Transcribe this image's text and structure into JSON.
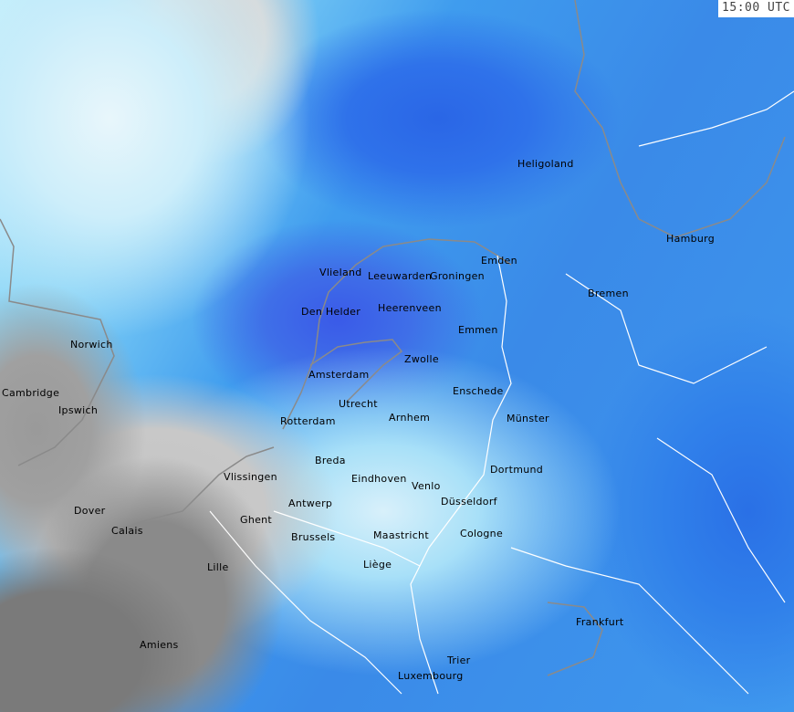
{
  "timestamp": "15:00 UTC",
  "colors": {
    "land_gray": "#7a7a7a",
    "sea_gray": "#c8c8c8",
    "light_precip": "#cdeefa",
    "moderate_precip": "#3f98ee",
    "heavy_precip": "#2a66e6",
    "intense_precip": "#e010e0",
    "extreme_precip": "#e00020",
    "borders": "#ffffff",
    "coastline": "#888888"
  },
  "cities": [
    "Heligoland",
    "Hamburg",
    "Vlieland",
    "Leeuwarden",
    "Groningen",
    "Emden",
    "Bremen",
    "Den Helder",
    "Heerenveen",
    "Emmen",
    "Norwich",
    "Amsterdam",
    "Zwolle",
    "Cambridge",
    "Ipswich",
    "Utrecht",
    "Enschede",
    "Rotterdam",
    "Arnhem",
    "Münster",
    "Breda",
    "Dortmund",
    "Vlissingen",
    "Eindhoven",
    "Venlo",
    "Dover",
    "Antwerp",
    "Düsseldorf",
    "Calais",
    "Ghent",
    "Brussels",
    "Maastricht",
    "Cologne",
    "Liège",
    "Lille",
    "Frankfurt",
    "Amiens",
    "Trier",
    "Luxembourg"
  ]
}
